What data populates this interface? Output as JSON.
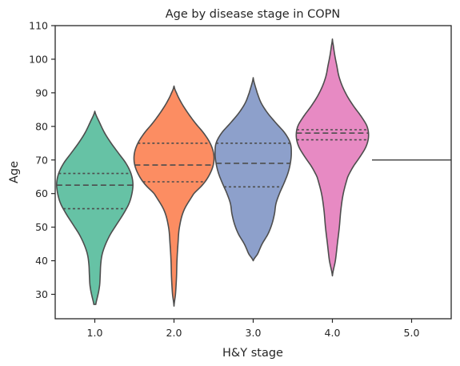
{
  "chart_data": {
    "type": "violin",
    "title": "Age by disease stage in COPN",
    "xlabel": "H&Y stage",
    "ylabel": "Age",
    "categories": [
      "1.0",
      "2.0",
      "3.0",
      "4.0",
      "5.0"
    ],
    "yticks": [
      30,
      40,
      50,
      60,
      70,
      80,
      90,
      100,
      110
    ],
    "ylim": [
      22.5,
      110
    ],
    "grid": false,
    "inner": "quartile",
    "colors": [
      "#66c2a5",
      "#fc8d62",
      "#8da0cb",
      "#e78ac3",
      "#a6d854"
    ],
    "outline_color": "#4d4d4d",
    "series": [
      {
        "category": "1.0",
        "ymin": 27,
        "ymax": 84.5,
        "quartiles": [
          55.5,
          62.5,
          66
        ],
        "density": [
          [
            27,
            0.02
          ],
          [
            29,
            0.05
          ],
          [
            31,
            0.08
          ],
          [
            33,
            0.1
          ],
          [
            36,
            0.11
          ],
          [
            39,
            0.12
          ],
          [
            42,
            0.15
          ],
          [
            45,
            0.22
          ],
          [
            48,
            0.32
          ],
          [
            51,
            0.45
          ],
          [
            54,
            0.58
          ],
          [
            57,
            0.69
          ],
          [
            60,
            0.75
          ],
          [
            63,
            0.77
          ],
          [
            66,
            0.73
          ],
          [
            69,
            0.63
          ],
          [
            72,
            0.48
          ],
          [
            75,
            0.33
          ],
          [
            78,
            0.2
          ],
          [
            81,
            0.1
          ],
          [
            84.5,
            0.0
          ]
        ]
      },
      {
        "category": "2.0",
        "ymin": 26.5,
        "ymax": 92,
        "quartiles": [
          63.5,
          68.5,
          75
        ],
        "density": [
          [
            26.5,
            0.0
          ],
          [
            30,
            0.03
          ],
          [
            35,
            0.05
          ],
          [
            40,
            0.06
          ],
          [
            45,
            0.08
          ],
          [
            50,
            0.11
          ],
          [
            55,
            0.2
          ],
          [
            60,
            0.4
          ],
          [
            63,
            0.6
          ],
          [
            66,
            0.73
          ],
          [
            69,
            0.8
          ],
          [
            72,
            0.8
          ],
          [
            75,
            0.73
          ],
          [
            78,
            0.6
          ],
          [
            81,
            0.43
          ],
          [
            84,
            0.28
          ],
          [
            87,
            0.15
          ],
          [
            90,
            0.05
          ],
          [
            92,
            0.0
          ]
        ]
      },
      {
        "category": "3.0",
        "ymin": 40,
        "ymax": 94.5,
        "quartiles": [
          62,
          69,
          75
        ],
        "density": [
          [
            40,
            0.0
          ],
          [
            42,
            0.09
          ],
          [
            45,
            0.18
          ],
          [
            48,
            0.3
          ],
          [
            51,
            0.38
          ],
          [
            54,
            0.43
          ],
          [
            57,
            0.46
          ],
          [
            60,
            0.53
          ],
          [
            63,
            0.62
          ],
          [
            66,
            0.7
          ],
          [
            69,
            0.75
          ],
          [
            72,
            0.77
          ],
          [
            75,
            0.75
          ],
          [
            78,
            0.64
          ],
          [
            81,
            0.46
          ],
          [
            84,
            0.29
          ],
          [
            87,
            0.16
          ],
          [
            90,
            0.08
          ],
          [
            94.5,
            0.0
          ]
        ]
      },
      {
        "category": "4.0",
        "ymin": 35.5,
        "ymax": 106,
        "quartiles": [
          76,
          78,
          79
        ],
        "density": [
          [
            35.5,
            0.0
          ],
          [
            40,
            0.06
          ],
          [
            45,
            0.1
          ],
          [
            50,
            0.14
          ],
          [
            55,
            0.17
          ],
          [
            60,
            0.22
          ],
          [
            65,
            0.31
          ],
          [
            68,
            0.42
          ],
          [
            71,
            0.56
          ],
          [
            74,
            0.68
          ],
          [
            77,
            0.73
          ],
          [
            80,
            0.7
          ],
          [
            83,
            0.58
          ],
          [
            86,
            0.43
          ],
          [
            89,
            0.3
          ],
          [
            92,
            0.2
          ],
          [
            95,
            0.13
          ],
          [
            98,
            0.09
          ],
          [
            101,
            0.05
          ],
          [
            104,
            0.02
          ],
          [
            106,
            0.0
          ]
        ]
      },
      {
        "category": "5.0",
        "single_value": 70
      }
    ]
  }
}
